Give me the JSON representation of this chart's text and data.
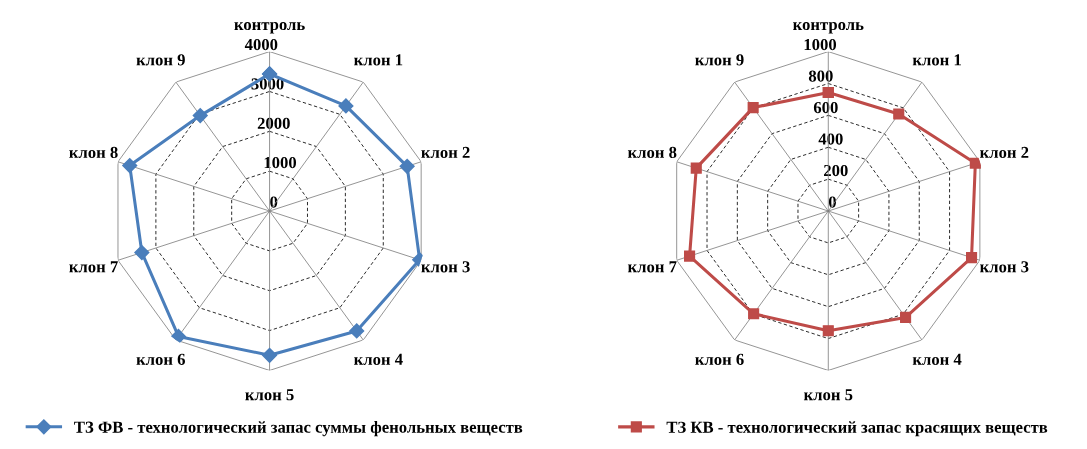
{
  "chart_data": [
    {
      "type": "radar",
      "categories": [
        "контроль",
        "клон 1",
        "клон 2",
        "клон 3",
        "клон 4",
        "клон 5",
        "клон 6",
        "клон 7",
        "клон 8",
        "клон 9"
      ],
      "series": [
        {
          "name": "ТЗ ФВ - технологический запас суммы фенольных веществ",
          "color": "#4a7ebb",
          "values": [
            3440,
            3260,
            3630,
            3960,
            3720,
            3620,
            3890,
            3370,
            3690,
            2960
          ]
        }
      ],
      "ylim": [
        0,
        4000
      ],
      "yticks": [
        0,
        1000,
        2000,
        3000,
        4000
      ],
      "grid": true,
      "legend": "bottom",
      "marker": "diamond"
    },
    {
      "type": "radar",
      "categories": [
        "контроль",
        "клон 1",
        "клон 2",
        "клон 3",
        "клон 4",
        "клон 5",
        "клон 6",
        "клон 7",
        "клон 8",
        "клон 9"
      ],
      "series": [
        {
          "name": "ТЗ КВ - технологический запас красящих веществ",
          "color": "#be4b48",
          "values": [
            744,
            752,
            970,
            945,
            825,
            751,
            797,
            915,
            871,
            802
          ]
        }
      ],
      "ylim": [
        0,
        1000
      ],
      "yticks": [
        0,
        200,
        400,
        600,
        800,
        1000
      ],
      "grid": true,
      "legend": "bottom",
      "marker": "square"
    }
  ]
}
